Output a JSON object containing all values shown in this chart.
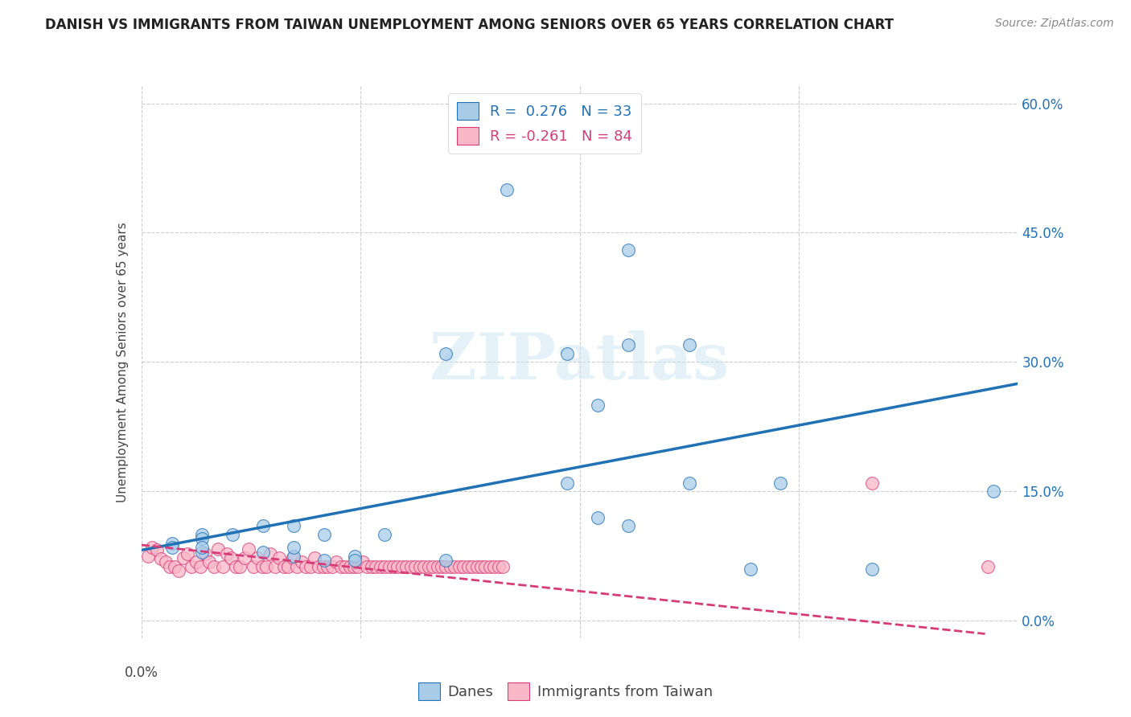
{
  "title": "DANISH VS IMMIGRANTS FROM TAIWAN UNEMPLOYMENT AMONG SENIORS OVER 65 YEARS CORRELATION CHART",
  "source": "Source: ZipAtlas.com",
  "ylabel": "Unemployment Among Seniors over 65 years",
  "xlim": [
    0.0,
    0.4
  ],
  "ylim": [
    -0.02,
    0.62
  ],
  "yticks": [
    0.0,
    0.15,
    0.3,
    0.45,
    0.6
  ],
  "ytick_labels": [
    "0.0%",
    "15.0%",
    "30.0%",
    "45.0%",
    "60.0%"
  ],
  "xticks": [
    0.0,
    0.1,
    0.2,
    0.3,
    0.4
  ],
  "legend1_label": "R =  0.276   N = 33",
  "legend2_label": "R = -0.261   N = 84",
  "blue_color": "#a8cce8",
  "pink_color": "#f9b8c8",
  "blue_line_color": "#2171b5",
  "pink_line_color": "#d63c78",
  "watermark": "ZIPatlas",
  "danes_label": "Danes",
  "immigrants_label": "Immigrants from Taiwan",
  "blue_scatter_x": [
    0.1667,
    0.2222,
    0.1389,
    0.1944,
    0.25,
    0.2222,
    0.2083,
    0.25,
    0.1944,
    0.2917,
    0.2083,
    0.0556,
    0.0694,
    0.0278,
    0.0417,
    0.0833,
    0.1111,
    0.0278,
    0.0139,
    0.0139,
    0.0278,
    0.0556,
    0.0694,
    0.0972,
    0.0972,
    0.1389,
    0.2222,
    0.3333,
    0.3889,
    0.2778,
    0.0278,
    0.0694,
    0.0833
  ],
  "blue_scatter_y": [
    0.5,
    0.43,
    0.31,
    0.31,
    0.32,
    0.32,
    0.25,
    0.16,
    0.16,
    0.16,
    0.12,
    0.11,
    0.11,
    0.1,
    0.1,
    0.1,
    0.1,
    0.095,
    0.09,
    0.085,
    0.08,
    0.08,
    0.075,
    0.075,
    0.07,
    0.07,
    0.11,
    0.06,
    0.15,
    0.06,
    0.085,
    0.085,
    0.07
  ],
  "pink_scatter_x": [
    0.003,
    0.005,
    0.007,
    0.009,
    0.011,
    0.013,
    0.015,
    0.017,
    0.019,
    0.021,
    0.023,
    0.025,
    0.027,
    0.029,
    0.031,
    0.033,
    0.035,
    0.037,
    0.039,
    0.041,
    0.043,
    0.045,
    0.047,
    0.049,
    0.051,
    0.053,
    0.055,
    0.057,
    0.059,
    0.061,
    0.063,
    0.065,
    0.067,
    0.069,
    0.071,
    0.073,
    0.075,
    0.077,
    0.079,
    0.081,
    0.083,
    0.085,
    0.087,
    0.089,
    0.091,
    0.093,
    0.095,
    0.097,
    0.099,
    0.101,
    0.103,
    0.105,
    0.107,
    0.109,
    0.111,
    0.113,
    0.115,
    0.117,
    0.119,
    0.121,
    0.123,
    0.125,
    0.127,
    0.129,
    0.131,
    0.133,
    0.135,
    0.137,
    0.139,
    0.141,
    0.143,
    0.145,
    0.147,
    0.149,
    0.151,
    0.153,
    0.155,
    0.157,
    0.159,
    0.161,
    0.163,
    0.165,
    0.3333,
    0.3861
  ],
  "pink_scatter_y": [
    0.075,
    0.085,
    0.082,
    0.072,
    0.068,
    0.063,
    0.063,
    0.058,
    0.073,
    0.078,
    0.063,
    0.068,
    0.063,
    0.078,
    0.068,
    0.063,
    0.083,
    0.063,
    0.078,
    0.073,
    0.063,
    0.063,
    0.073,
    0.083,
    0.063,
    0.073,
    0.063,
    0.063,
    0.078,
    0.063,
    0.073,
    0.063,
    0.063,
    0.073,
    0.063,
    0.068,
    0.063,
    0.063,
    0.073,
    0.063,
    0.063,
    0.063,
    0.063,
    0.068,
    0.063,
    0.063,
    0.063,
    0.063,
    0.063,
    0.068,
    0.063,
    0.063,
    0.063,
    0.063,
    0.063,
    0.063,
    0.063,
    0.063,
    0.063,
    0.063,
    0.063,
    0.063,
    0.063,
    0.063,
    0.063,
    0.063,
    0.063,
    0.063,
    0.063,
    0.063,
    0.063,
    0.063,
    0.063,
    0.063,
    0.063,
    0.063,
    0.063,
    0.063,
    0.063,
    0.063,
    0.063,
    0.063,
    0.16,
    0.063
  ],
  "blue_line_x": [
    0.0,
    0.4
  ],
  "blue_line_y": [
    0.082,
    0.275
  ],
  "pink_line_x": [
    0.0,
    0.385
  ],
  "pink_line_y": [
    0.088,
    -0.015
  ]
}
